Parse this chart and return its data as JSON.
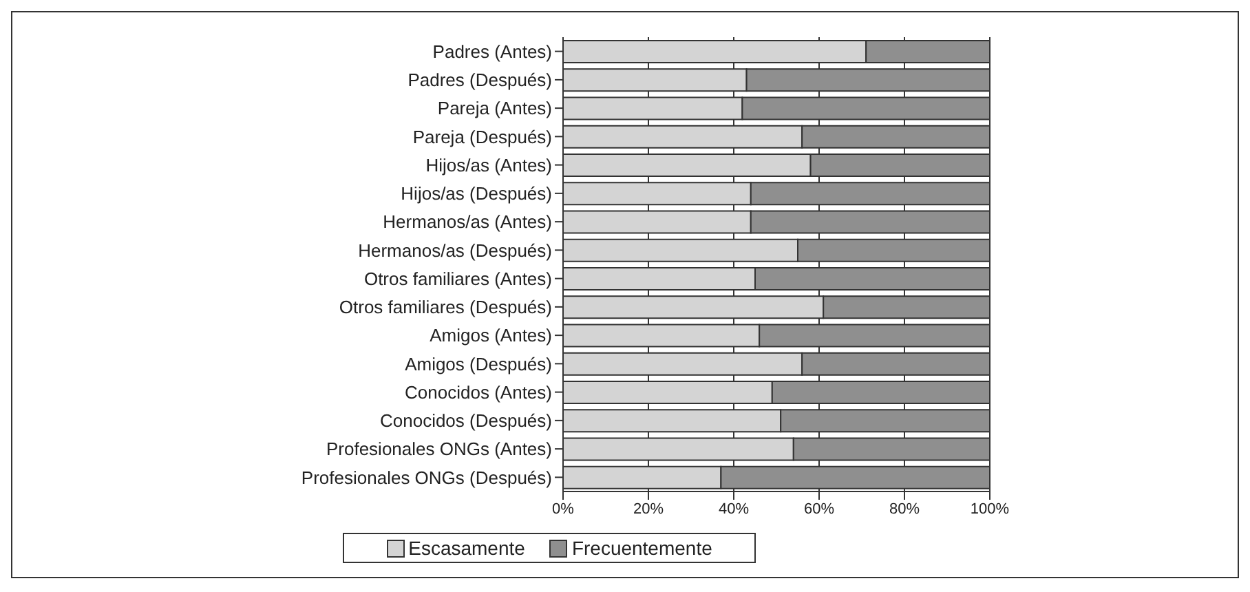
{
  "chart_data": {
    "type": "bar",
    "orientation": "horizontal",
    "stacked": true,
    "categories": [
      "Padres (Antes)",
      "Padres (Después)",
      "Pareja (Antes)",
      "Pareja (Después)",
      "Hijos/as (Antes)",
      "Hijos/as (Después)",
      "Hermanos/as (Antes)",
      "Hermanos/as (Después)",
      "Otros familiares (Antes)",
      "Otros familiares (Después)",
      "Amigos (Antes)",
      "Amigos (Después)",
      "Conocidos (Antes)",
      "Conocidos (Después)",
      "Profesionales ONGs (Antes)",
      "Profesionales ONGs (Después)"
    ],
    "series": [
      {
        "name": "Escasamente",
        "color": "#d4d4d4",
        "values": [
          71,
          43,
          42,
          56,
          58,
          44,
          44,
          55,
          45,
          61,
          46,
          56,
          49,
          51,
          54,
          37
        ]
      },
      {
        "name": "Frecuentemente",
        "color": "#8f8f8f",
        "values": [
          29,
          57,
          58,
          44,
          42,
          56,
          56,
          45,
          55,
          39,
          54,
          44,
          51,
          49,
          46,
          63
        ]
      }
    ],
    "xlim": [
      0,
      100
    ],
    "xticks": [
      {
        "value": 0,
        "label": "0%"
      },
      {
        "value": 20,
        "label": "20%"
      },
      {
        "value": 40,
        "label": "40%"
      },
      {
        "value": 60,
        "label": "60%"
      },
      {
        "value": 80,
        "label": "80%"
      },
      {
        "value": 100,
        "label": "100%"
      }
    ],
    "grid": "x",
    "legend": "bottom"
  }
}
